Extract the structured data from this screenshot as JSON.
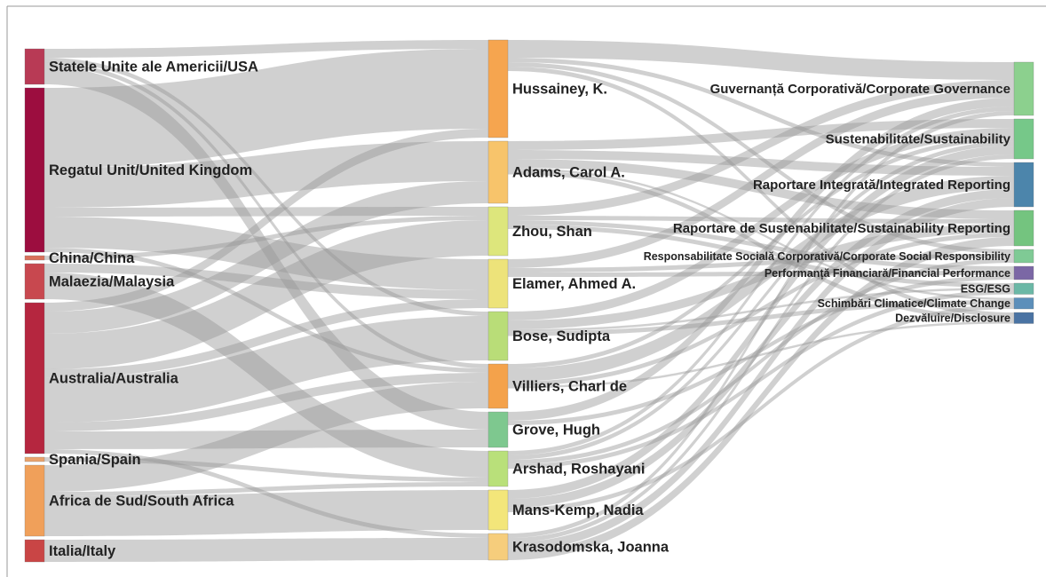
{
  "chart_data": {
    "type": "sankey",
    "link_color": "rgba(150,150,150,0.45)",
    "nodes": [
      {
        "label": "Statele Unite ale Americii/USA",
        "color": "#b83a55"
      },
      {
        "label": "Regatul Unit/United Kingdom",
        "color": "#9c0d3f"
      },
      {
        "label": "China/China",
        "color": "#d9705a"
      },
      {
        "label": "Malaezia/Malaysia",
        "color": "#c8484f"
      },
      {
        "label": "Australia/Australia",
        "color": "#b5263f"
      },
      {
        "label": "Spania/Spain",
        "color": "#e9a36c"
      },
      {
        "label": "Africa de Sud/South Africa",
        "color": "#f0a05a"
      },
      {
        "label": "Italia/Italy",
        "color": "#c94545"
      },
      {
        "label": "Hussainey, K.",
        "color": "#f6a54f"
      },
      {
        "label": "Adams, Carol A.",
        "color": "#f7c46b"
      },
      {
        "label": "Zhou, Shan",
        "color": "#dde67c"
      },
      {
        "label": "Elamer, Ahmed A.",
        "color": "#ede37a"
      },
      {
        "label": "Bose, Sudipta",
        "color": "#b9dd78"
      },
      {
        "label": "Villiers, Charl de",
        "color": "#f4a24b"
      },
      {
        "label": "Grove, Hugh",
        "color": "#7ec88f"
      },
      {
        "label": "Arshad, Roshayani",
        "color": "#b9e07a"
      },
      {
        "label": "Mans-Kemp, Nadia",
        "color": "#f3e67a"
      },
      {
        "label": "Krasodomska, Joanna",
        "color": "#f6cd7c"
      },
      {
        "label": "Guvernanță Corporativă/Corporate Governance",
        "color": "#8cd08e"
      },
      {
        "label": "Sustenabilitate/Sustainability",
        "color": "#76c889"
      },
      {
        "label": "Raportare Integrată/Integrated Reporting",
        "color": "#4c85ab"
      },
      {
        "label": "Raportare de Sustenabilitate/Sustainability Reporting",
        "color": "#74c47f"
      },
      {
        "label": "Responsabilitate Socială Corporativă/Corporate Social Responsibility",
        "color": "#7fca95"
      },
      {
        "label": "Performanță Financiară/Financial Performance",
        "color": "#7b67a5"
      },
      {
        "label": "ESG/ESG",
        "color": "#6bb8a6"
      },
      {
        "label": "Schimbări Climatice/Climate Change",
        "color": "#5c8fba"
      },
      {
        "label": "Dezvăluire/Disclosure",
        "color": "#4a73a3"
      }
    ],
    "links": [
      {
        "source": 0,
        "target": 8,
        "value": 2
      },
      {
        "source": 0,
        "target": 14,
        "value": 4
      },
      {
        "source": 0,
        "target": 13,
        "value": 1
      },
      {
        "source": 0,
        "target": 12,
        "value": 1
      },
      {
        "source": 1,
        "target": 8,
        "value": 18
      },
      {
        "source": 1,
        "target": 9,
        "value": 9
      },
      {
        "source": 1,
        "target": 11,
        "value": 7
      },
      {
        "source": 1,
        "target": 10,
        "value": 2
      },
      {
        "source": 1,
        "target": 13,
        "value": 1
      },
      {
        "source": 2,
        "target": 10,
        "value": 1
      },
      {
        "source": 3,
        "target": 15,
        "value": 6
      },
      {
        "source": 3,
        "target": 11,
        "value": 2
      },
      {
        "source": 4,
        "target": 10,
        "value": 8
      },
      {
        "source": 4,
        "target": 12,
        "value": 10
      },
      {
        "source": 4,
        "target": 9,
        "value": 5
      },
      {
        "source": 4,
        "target": 8,
        "value": 2
      },
      {
        "source": 4,
        "target": 14,
        "value": 4
      },
      {
        "source": 4,
        "target": 13,
        "value": 2
      },
      {
        "source": 4,
        "target": 11,
        "value": 2
      },
      {
        "source": 4,
        "target": 17,
        "value": 1
      },
      {
        "source": 5,
        "target": 15,
        "value": 1
      },
      {
        "source": 6,
        "target": 13,
        "value": 6
      },
      {
        "source": 6,
        "target": 16,
        "value": 9
      },
      {
        "source": 6,
        "target": 15,
        "value": 1
      },
      {
        "source": 7,
        "target": 17,
        "value": 5
      },
      {
        "source": 8,
        "target": 18,
        "value": 4
      },
      {
        "source": 8,
        "target": 20,
        "value": 1
      },
      {
        "source": 8,
        "target": 26,
        "value": 1
      },
      {
        "source": 8,
        "target": 22,
        "value": 1
      },
      {
        "source": 9,
        "target": 19,
        "value": 2
      },
      {
        "source": 9,
        "target": 20,
        "value": 2
      },
      {
        "source": 9,
        "target": 21,
        "value": 2
      },
      {
        "source": 9,
        "target": 25,
        "value": 0.5
      },
      {
        "source": 9,
        "target": 26,
        "value": 1
      },
      {
        "source": 10,
        "target": 18,
        "value": 2
      },
      {
        "source": 10,
        "target": 21,
        "value": 1
      },
      {
        "source": 10,
        "target": 24,
        "value": 1
      },
      {
        "source": 10,
        "target": 23,
        "value": 1
      },
      {
        "source": 11,
        "target": 18,
        "value": 2
      },
      {
        "source": 11,
        "target": 22,
        "value": 1
      },
      {
        "source": 11,
        "target": 23,
        "value": 1
      },
      {
        "source": 12,
        "target": 19,
        "value": 2
      },
      {
        "source": 12,
        "target": 21,
        "value": 2
      },
      {
        "source": 12,
        "target": 25,
        "value": 1
      },
      {
        "source": 12,
        "target": 24,
        "value": 0.5
      },
      {
        "source": 13,
        "target": 20,
        "value": 3
      },
      {
        "source": 13,
        "target": 21,
        "value": 1
      },
      {
        "source": 13,
        "target": 19,
        "value": 1
      },
      {
        "source": 13,
        "target": 26,
        "value": 0.5
      },
      {
        "source": 14,
        "target": 18,
        "value": 2
      },
      {
        "source": 14,
        "target": 23,
        "value": 1
      },
      {
        "source": 15,
        "target": 18,
        "value": 1
      },
      {
        "source": 15,
        "target": 22,
        "value": 1
      },
      {
        "source": 15,
        "target": 19,
        "value": 1
      },
      {
        "source": 15,
        "target": 24,
        "value": 1
      },
      {
        "source": 16,
        "target": 19,
        "value": 2
      },
      {
        "source": 16,
        "target": 20,
        "value": 2
      },
      {
        "source": 16,
        "target": 25,
        "value": 1
      },
      {
        "source": 17,
        "target": 18,
        "value": 1
      },
      {
        "source": 17,
        "target": 19,
        "value": 1
      },
      {
        "source": 17,
        "target": 20,
        "value": 2
      },
      {
        "source": 17,
        "target": 21,
        "value": 2
      }
    ]
  }
}
